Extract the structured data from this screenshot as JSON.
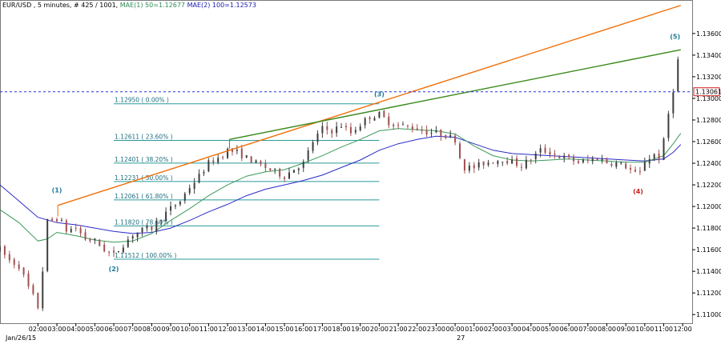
{
  "header": {
    "symbol": "EUR/USD",
    "timeframe": ", 5 minutes, # 425 / 1001,",
    "mae1_label": "MAE(1) 50=1.12677",
    "mae2_label": "MAE(2) 100=1.12573"
  },
  "colors": {
    "bull_candle": "#3d3d3d",
    "bear_candle": "#a05050",
    "mae1": "#3a9a5a",
    "mae2": "#2a2ac8",
    "orange_trendline": "#f0700a",
    "green_trendline": "#3a8a1a",
    "fib": "#2a9a9a",
    "price_line": "#2233dd",
    "price_tag_border": "#d02020",
    "wave_label": "#1a7a9a",
    "wave_label_4": "#cc2020"
  },
  "current_price": {
    "label": "1.13061",
    "value": 1.13061
  },
  "fibonacci": [
    {
      "price": 1.1295,
      "label": "1.12950  ( 0.00% )"
    },
    {
      "price": 1.12611,
      "label": "1.12611  ( 23.60% )"
    },
    {
      "price": 1.12401,
      "label": "1.12401  ( 38.20% )"
    },
    {
      "price": 1.12231,
      "label": "1.12231  ( 50.00% )"
    },
    {
      "price": 1.12061,
      "label": "1.12061  ( 61.80% )"
    },
    {
      "price": 1.1182,
      "label": "1.11820  ( 78.60% )"
    },
    {
      "price": 1.11512,
      "label": "1.11512  ( 100.00% )"
    }
  ],
  "wave_labels": [
    {
      "text": "(1)",
      "time": 3.0,
      "price": 1.1213
    },
    {
      "text": "(2)",
      "time": 6.0,
      "price": 1.114
    },
    {
      "text": "(3)",
      "time": 20.0,
      "price": 1.1302
    },
    {
      "text": "(4)",
      "time": 33.65,
      "price": 1.1212
    },
    {
      "text": "(5)",
      "time": 35.6,
      "price": 1.1355
    }
  ],
  "trendlines": [
    {
      "name": "orange",
      "from": {
        "time": 3.05,
        "price": 1.1201
      },
      "to": {
        "time": 35.9,
        "price": 1.1386
      }
    },
    {
      "name": "green",
      "from": {
        "time": 12.1,
        "price": 1.1262
      },
      "to": {
        "time": 35.9,
        "price": 1.1345
      }
    }
  ],
  "chart_data": {
    "type": "candlestick",
    "symbol": "EUR/USD",
    "timeframe": "5 minutes",
    "bars_shown": "425 / 1001",
    "y_ticks": [
      1.136,
      1.134,
      1.132,
      1.13,
      1.128,
      1.126,
      1.124,
      1.122,
      1.12,
      1.118,
      1.116,
      1.114,
      1.112,
      1.11
    ],
    "y_tick_labels": [
      "1.13600",
      "1.13400",
      "1.13200",
      "1.13000",
      "1.12800",
      "1.12600",
      "1.12400",
      "1.12200",
      "1.12000",
      "1.11800",
      "1.11600",
      "1.11400",
      "1.11200",
      "1.11000"
    ],
    "ylim": [
      1.1092,
      1.1391
    ],
    "x_ticks": [
      {
        "time": 2,
        "label": "02:00"
      },
      {
        "time": 3,
        "label": "03:00"
      },
      {
        "time": 4,
        "label": "04:00"
      },
      {
        "time": 5,
        "label": "05:00"
      },
      {
        "time": 6,
        "label": "06:00"
      },
      {
        "time": 7,
        "label": "07:00"
      },
      {
        "time": 8,
        "label": "08:00"
      },
      {
        "time": 9,
        "label": "09:00"
      },
      {
        "time": 10,
        "label": "10:00"
      },
      {
        "time": 11,
        "label": "11:00"
      },
      {
        "time": 12,
        "label": "12:00"
      },
      {
        "time": 13,
        "label": "13:00"
      },
      {
        "time": 14,
        "label": "14:00"
      },
      {
        "time": 15,
        "label": "15:00"
      },
      {
        "time": 16,
        "label": "16:00"
      },
      {
        "time": 17,
        "label": "17:00"
      },
      {
        "time": 18,
        "label": "18:00"
      },
      {
        "time": 19,
        "label": "19:00"
      },
      {
        "time": 20,
        "label": "20:00"
      },
      {
        "time": 21,
        "label": "21:00"
      },
      {
        "time": 22,
        "label": "22:00"
      },
      {
        "time": 23,
        "label": "23:00"
      },
      {
        "time": 24,
        "label": "00:00"
      },
      {
        "time": 25,
        "label": "01:00"
      },
      {
        "time": 26,
        "label": "02:00"
      },
      {
        "time": 27,
        "label": "03:00"
      },
      {
        "time": 28,
        "label": "04:00"
      },
      {
        "time": 29,
        "label": "05:00"
      },
      {
        "time": 30,
        "label": "06:00"
      },
      {
        "time": 31,
        "label": "07:00"
      },
      {
        "time": 32,
        "label": "08:00"
      },
      {
        "time": 33,
        "label": "09:00"
      },
      {
        "time": 34,
        "label": "10:00"
      },
      {
        "time": 35,
        "label": "11:00"
      },
      {
        "time": 36,
        "label": "12:00"
      }
    ],
    "date_labels": [
      {
        "time": 1.1,
        "label": "Jan/26/15"
      },
      {
        "time": 24.3,
        "label": "27"
      }
    ],
    "price_path": [
      {
        "time": 0.0,
        "price": 1.116
      },
      {
        "time": 0.5,
        "price": 1.115
      },
      {
        "time": 1.0,
        "price": 1.1145
      },
      {
        "time": 1.5,
        "price": 1.1125
      },
      {
        "time": 1.8,
        "price": 1.1115
      },
      {
        "time": 2.05,
        "price": 1.1105
      },
      {
        "time": 2.3,
        "price": 1.115
      },
      {
        "time": 2.55,
        "price": 1.1195
      },
      {
        "time": 2.8,
        "price": 1.1185
      },
      {
        "time": 3.05,
        "price": 1.119
      },
      {
        "time": 3.5,
        "price": 1.1178
      },
      {
        "time": 4.0,
        "price": 1.118
      },
      {
        "time": 4.5,
        "price": 1.117
      },
      {
        "time": 5.0,
        "price": 1.1168
      },
      {
        "time": 5.5,
        "price": 1.116
      },
      {
        "time": 6.0,
        "price": 1.1155
      },
      {
        "time": 6.5,
        "price": 1.1165
      },
      {
        "time": 7.0,
        "price": 1.1174
      },
      {
        "time": 7.5,
        "price": 1.1178
      },
      {
        "time": 8.0,
        "price": 1.118
      },
      {
        "time": 8.5,
        "price": 1.119
      },
      {
        "time": 9.0,
        "price": 1.1198
      },
      {
        "time": 9.5,
        "price": 1.1205
      },
      {
        "time": 10.0,
        "price": 1.1218
      },
      {
        "time": 10.5,
        "price": 1.1228
      },
      {
        "time": 11.0,
        "price": 1.124
      },
      {
        "time": 11.5,
        "price": 1.1245
      },
      {
        "time": 12.0,
        "price": 1.1252
      },
      {
        "time": 12.5,
        "price": 1.125
      },
      {
        "time": 13.0,
        "price": 1.1245
      },
      {
        "time": 13.5,
        "price": 1.124
      },
      {
        "time": 14.0,
        "price": 1.1236
      },
      {
        "time": 14.5,
        "price": 1.1232
      },
      {
        "time": 15.0,
        "price": 1.1228
      },
      {
        "time": 15.5,
        "price": 1.1235
      },
      {
        "time": 16.0,
        "price": 1.124
      },
      {
        "time": 16.5,
        "price": 1.126
      },
      {
        "time": 17.0,
        "price": 1.1272
      },
      {
        "time": 17.5,
        "price": 1.127
      },
      {
        "time": 18.0,
        "price": 1.1275
      },
      {
        "time": 18.5,
        "price": 1.1268
      },
      {
        "time": 19.0,
        "price": 1.1276
      },
      {
        "time": 19.5,
        "price": 1.1283
      },
      {
        "time": 20.0,
        "price": 1.1285
      },
      {
        "time": 20.5,
        "price": 1.1278
      },
      {
        "time": 21.0,
        "price": 1.1275
      },
      {
        "time": 21.5,
        "price": 1.1274
      },
      {
        "time": 22.0,
        "price": 1.1272
      },
      {
        "time": 22.5,
        "price": 1.1269
      },
      {
        "time": 23.0,
        "price": 1.1268
      },
      {
        "time": 23.5,
        "price": 1.1266
      },
      {
        "time": 24.0,
        "price": 1.1262
      },
      {
        "time": 24.4,
        "price": 1.1236
      },
      {
        "time": 25.0,
        "price": 1.1236
      },
      {
        "time": 25.5,
        "price": 1.124
      },
      {
        "time": 26.0,
        "price": 1.1242
      },
      {
        "time": 26.5,
        "price": 1.1244
      },
      {
        "time": 27.0,
        "price": 1.1241
      },
      {
        "time": 27.5,
        "price": 1.1238
      },
      {
        "time": 28.0,
        "price": 1.1244
      },
      {
        "time": 28.5,
        "price": 1.1252
      },
      {
        "time": 29.0,
        "price": 1.125
      },
      {
        "time": 29.5,
        "price": 1.1246
      },
      {
        "time": 30.0,
        "price": 1.1244
      },
      {
        "time": 30.5,
        "price": 1.1241
      },
      {
        "time": 31.0,
        "price": 1.1242
      },
      {
        "time": 31.5,
        "price": 1.1245
      },
      {
        "time": 32.0,
        "price": 1.1241
      },
      {
        "time": 32.5,
        "price": 1.124
      },
      {
        "time": 33.0,
        "price": 1.1237
      },
      {
        "time": 33.5,
        "price": 1.123
      },
      {
        "time": 33.7,
        "price": 1.1228
      },
      {
        "time": 34.0,
        "price": 1.1242
      },
      {
        "time": 34.5,
        "price": 1.1248
      },
      {
        "time": 34.8,
        "price": 1.1244
      },
      {
        "time": 35.0,
        "price": 1.126
      },
      {
        "time": 35.2,
        "price": 1.1282
      },
      {
        "time": 35.45,
        "price": 1.13
      },
      {
        "time": 35.6,
        "price": 1.1325
      },
      {
        "time": 35.75,
        "price": 1.1335
      },
      {
        "time": 35.9,
        "price": 1.131
      }
    ],
    "series": [
      {
        "name": "MAE(1) 50",
        "last_value": 1.12677,
        "points": [
          {
            "time": 0.0,
            "price": 1.1197
          },
          {
            "time": 1.0,
            "price": 1.1185
          },
          {
            "time": 2.0,
            "price": 1.1168
          },
          {
            "time": 2.5,
            "price": 1.117
          },
          {
            "time": 3.0,
            "price": 1.1176
          },
          {
            "time": 4.0,
            "price": 1.1173
          },
          {
            "time": 5.0,
            "price": 1.1169
          },
          {
            "time": 6.0,
            "price": 1.1167
          },
          {
            "time": 7.0,
            "price": 1.1168
          },
          {
            "time": 8.0,
            "price": 1.1175
          },
          {
            "time": 9.0,
            "price": 1.1187
          },
          {
            "time": 10.0,
            "price": 1.1198
          },
          {
            "time": 11.0,
            "price": 1.121
          },
          {
            "time": 12.0,
            "price": 1.122
          },
          {
            "time": 13.0,
            "price": 1.1228
          },
          {
            "time": 14.0,
            "price": 1.1232
          },
          {
            "time": 15.0,
            "price": 1.1234
          },
          {
            "time": 16.0,
            "price": 1.124
          },
          {
            "time": 17.0,
            "price": 1.1247
          },
          {
            "time": 18.0,
            "price": 1.1255
          },
          {
            "time": 19.0,
            "price": 1.1262
          },
          {
            "time": 20.0,
            "price": 1.127
          },
          {
            "time": 21.0,
            "price": 1.1272
          },
          {
            "time": 22.0,
            "price": 1.1271
          },
          {
            "time": 23.0,
            "price": 1.127
          },
          {
            "time": 24.0,
            "price": 1.1267
          },
          {
            "time": 25.0,
            "price": 1.1256
          },
          {
            "time": 26.0,
            "price": 1.1247
          },
          {
            "time": 27.0,
            "price": 1.1243
          },
          {
            "time": 28.0,
            "price": 1.1242
          },
          {
            "time": 29.0,
            "price": 1.1243
          },
          {
            "time": 30.0,
            "price": 1.1244
          },
          {
            "time": 31.0,
            "price": 1.1243
          },
          {
            "time": 32.0,
            "price": 1.1242
          },
          {
            "time": 33.0,
            "price": 1.1241
          },
          {
            "time": 34.0,
            "price": 1.1241
          },
          {
            "time": 35.0,
            "price": 1.1247
          },
          {
            "time": 35.5,
            "price": 1.1258
          },
          {
            "time": 35.9,
            "price": 1.12677
          }
        ]
      },
      {
        "name": "MAE(2) 100",
        "last_value": 1.12573,
        "points": [
          {
            "time": 0.0,
            "price": 1.122
          },
          {
            "time": 1.0,
            "price": 1.1205
          },
          {
            "time": 2.0,
            "price": 1.119
          },
          {
            "time": 3.0,
            "price": 1.1185
          },
          {
            "time": 4.0,
            "price": 1.1183
          },
          {
            "time": 5.0,
            "price": 1.118
          },
          {
            "time": 6.0,
            "price": 1.1177
          },
          {
            "time": 7.0,
            "price": 1.1175
          },
          {
            "time": 8.0,
            "price": 1.1176
          },
          {
            "time": 9.0,
            "price": 1.118
          },
          {
            "time": 10.0,
            "price": 1.1187
          },
          {
            "time": 11.0,
            "price": 1.1195
          },
          {
            "time": 12.0,
            "price": 1.1202
          },
          {
            "time": 13.0,
            "price": 1.121
          },
          {
            "time": 14.0,
            "price": 1.1216
          },
          {
            "time": 15.0,
            "price": 1.122
          },
          {
            "time": 16.0,
            "price": 1.1224
          },
          {
            "time": 17.0,
            "price": 1.1229
          },
          {
            "time": 18.0,
            "price": 1.1236
          },
          {
            "time": 19.0,
            "price": 1.1243
          },
          {
            "time": 20.0,
            "price": 1.1252
          },
          {
            "time": 21.0,
            "price": 1.1258
          },
          {
            "time": 22.0,
            "price": 1.1262
          },
          {
            "time": 23.0,
            "price": 1.1265
          },
          {
            "time": 24.0,
            "price": 1.1264
          },
          {
            "time": 25.0,
            "price": 1.1258
          },
          {
            "time": 26.0,
            "price": 1.1252
          },
          {
            "time": 27.0,
            "price": 1.1249
          },
          {
            "time": 28.0,
            "price": 1.1248
          },
          {
            "time": 29.0,
            "price": 1.1247
          },
          {
            "time": 30.0,
            "price": 1.1246
          },
          {
            "time": 31.0,
            "price": 1.1245
          },
          {
            "time": 32.0,
            "price": 1.1244
          },
          {
            "time": 33.0,
            "price": 1.1243
          },
          {
            "time": 34.0,
            "price": 1.1242
          },
          {
            "time": 35.0,
            "price": 1.1244
          },
          {
            "time": 35.5,
            "price": 1.125
          },
          {
            "time": 35.9,
            "price": 1.12573
          }
        ]
      }
    ],
    "grid": false
  }
}
